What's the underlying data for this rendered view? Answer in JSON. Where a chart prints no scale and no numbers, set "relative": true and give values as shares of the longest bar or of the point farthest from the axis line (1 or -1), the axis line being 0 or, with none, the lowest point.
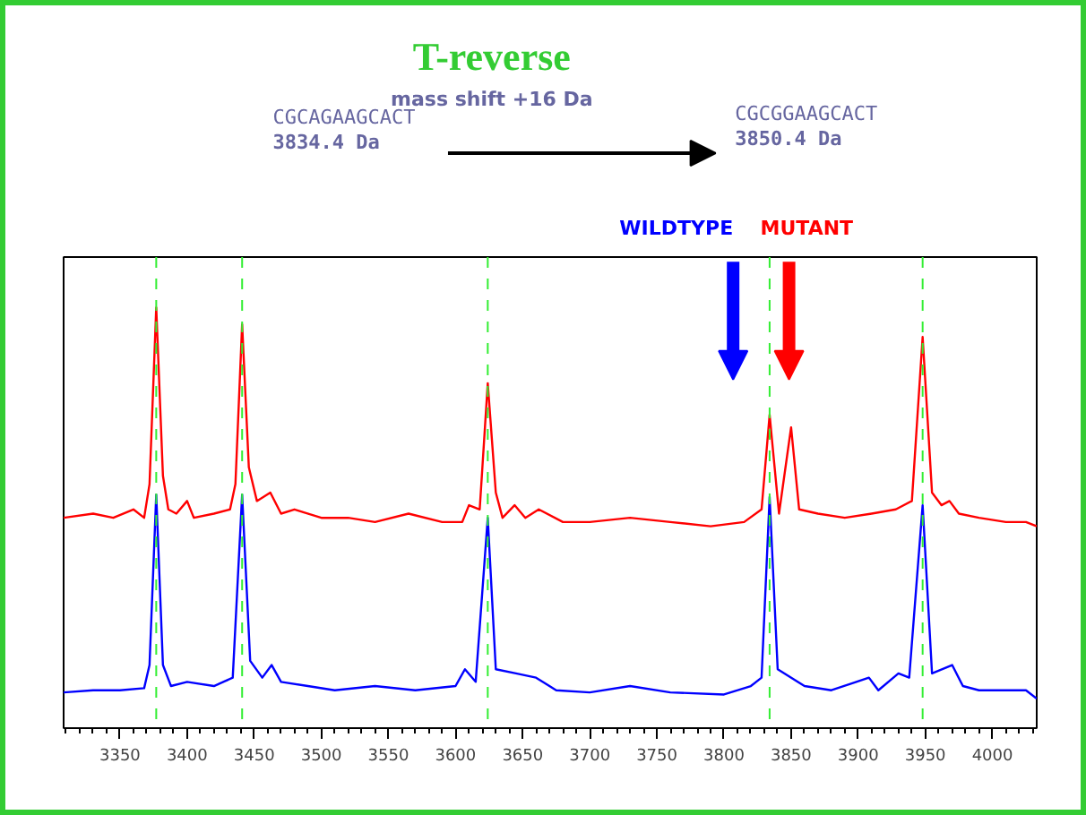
{
  "chart_data": {
    "type": "line",
    "title": "T-reverse",
    "relative": true,
    "xlim": [
      3308,
      4033
    ],
    "xticks": [
      3350,
      3400,
      3450,
      3500,
      3550,
      3600,
      3650,
      3700,
      3750,
      3800,
      3850,
      3900,
      3950,
      4000
    ],
    "grid": false,
    "marker": "none",
    "line_style": "solid",
    "series": [
      {
        "color": "#ff0000",
        "x": [
          3308,
          3330,
          3345,
          3360,
          3368,
          3372,
          3377,
          3382,
          3386,
          3392,
          3400,
          3405,
          3420,
          3432,
          3436,
          3441,
          3446,
          3452,
          3462,
          3470,
          3480,
          3500,
          3520,
          3540,
          3565,
          3590,
          3605,
          3610,
          3618,
          3624,
          3630,
          3635,
          3644,
          3652,
          3662,
          3680,
          3700,
          3730,
          3760,
          3790,
          3815,
          3828,
          3834,
          3841,
          3850,
          3856,
          3870,
          3890,
          3910,
          3928,
          3940,
          3948,
          3955,
          3962,
          3968,
          3975,
          3990,
          4010,
          4025,
          4033
        ],
        "values": [
          0.5,
          0.51,
          0.5,
          0.52,
          0.5,
          0.58,
          1.0,
          0.6,
          0.52,
          0.51,
          0.54,
          0.5,
          0.51,
          0.52,
          0.58,
          0.96,
          0.62,
          0.54,
          0.56,
          0.51,
          0.52,
          0.5,
          0.5,
          0.49,
          0.51,
          0.49,
          0.49,
          0.53,
          0.52,
          0.82,
          0.56,
          0.5,
          0.53,
          0.5,
          0.52,
          0.49,
          0.49,
          0.5,
          0.49,
          0.48,
          0.49,
          0.52,
          0.745,
          0.51,
          0.715,
          0.52,
          0.51,
          0.5,
          0.51,
          0.52,
          0.54,
          0.93,
          0.56,
          0.53,
          0.54,
          0.51,
          0.5,
          0.49,
          0.49,
          0.48
        ]
      },
      {
        "color": "#0000ff",
        "x": [
          3308,
          3330,
          3350,
          3368,
          3372,
          3377,
          3382,
          3388,
          3400,
          3420,
          3434,
          3441,
          3447,
          3456,
          3463,
          3470,
          3490,
          3510,
          3540,
          3570,
          3600,
          3607,
          3615,
          3624,
          3630,
          3645,
          3660,
          3675,
          3700,
          3730,
          3760,
          3800,
          3820,
          3828,
          3834,
          3840,
          3860,
          3880,
          3908,
          3915,
          3930,
          3938,
          3948,
          3955,
          3970,
          3978,
          3990,
          4010,
          4025,
          4033
        ],
        "values": [
          0.085,
          0.09,
          0.09,
          0.095,
          0.15,
          0.555,
          0.15,
          0.1,
          0.11,
          0.1,
          0.12,
          0.555,
          0.16,
          0.12,
          0.15,
          0.11,
          0.1,
          0.09,
          0.1,
          0.09,
          0.1,
          0.14,
          0.11,
          0.5,
          0.14,
          0.13,
          0.12,
          0.09,
          0.085,
          0.1,
          0.085,
          0.08,
          0.1,
          0.12,
          0.55,
          0.14,
          0.1,
          0.09,
          0.12,
          0.09,
          0.13,
          0.12,
          0.53,
          0.13,
          0.15,
          0.1,
          0.09,
          0.09,
          0.09,
          0.07
        ]
      }
    ],
    "ref_lines": [
      {
        "axis": "x",
        "value": 3377,
        "color": "#33ee33",
        "line_style": "dashed"
      },
      {
        "axis": "x",
        "value": 3441,
        "color": "#33ee33",
        "line_style": "dashed"
      },
      {
        "axis": "x",
        "value": 3624,
        "color": "#33ee33",
        "line_style": "dashed"
      },
      {
        "axis": "x",
        "value": 3834,
        "color": "#33ee33",
        "line_style": "dashed"
      },
      {
        "axis": "x",
        "value": 3948,
        "color": "#33ee33",
        "line_style": "dashed"
      }
    ],
    "annotations": [
      "mass shift +16 Da",
      "CGCAGAAGCACT",
      "3834.4 Da",
      "CGCGGAAGCACT",
      "3850.4 Da",
      "WILDTYPE",
      "MUTANT"
    ]
  }
}
